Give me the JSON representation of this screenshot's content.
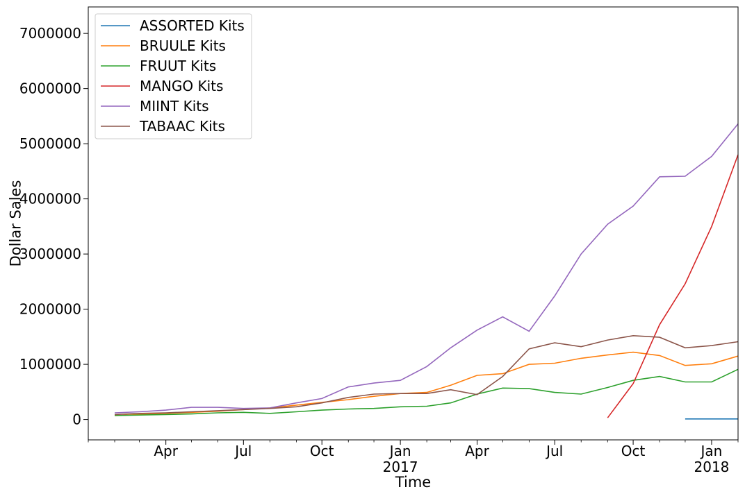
{
  "chart_data": {
    "type": "line",
    "xlabel": "Time",
    "ylabel": "Dollar Sales",
    "x": [
      "2016-02",
      "2016-03",
      "2016-04",
      "2016-05",
      "2016-06",
      "2016-07",
      "2016-08",
      "2016-09",
      "2016-10",
      "2016-11",
      "2016-12",
      "2017-01",
      "2017-02",
      "2017-03",
      "2017-04",
      "2017-05",
      "2017-06",
      "2017-07",
      "2017-08",
      "2017-09",
      "2017-10",
      "2017-11",
      "2017-12",
      "2018-01",
      "2018-02"
    ],
    "xlim": [
      "2016-01-01",
      "2018-02-01"
    ],
    "ylim": [
      -370000,
      7480000
    ],
    "x_ticks": [
      {
        "date": "2016-04",
        "label": "Apr",
        "label2": ""
      },
      {
        "date": "2016-07",
        "label": "Jul",
        "label2": ""
      },
      {
        "date": "2016-10",
        "label": "Oct",
        "label2": ""
      },
      {
        "date": "2017-01",
        "label": "Jan",
        "label2": "2017"
      },
      {
        "date": "2017-04",
        "label": "Apr",
        "label2": ""
      },
      {
        "date": "2017-07",
        "label": "Jul",
        "label2": ""
      },
      {
        "date": "2017-10",
        "label": "Oct",
        "label2": ""
      },
      {
        "date": "2018-01",
        "label": "Jan",
        "label2": "2018"
      }
    ],
    "y_ticks": [
      0,
      1000000,
      2000000,
      3000000,
      4000000,
      5000000,
      6000000,
      7000000
    ],
    "grid": false,
    "legend_position": "top-left",
    "series": [
      {
        "name": "ASSORTED Kits",
        "color": "#1f77b4",
        "values": [
          null,
          null,
          null,
          null,
          null,
          null,
          null,
          null,
          null,
          null,
          null,
          null,
          null,
          null,
          null,
          null,
          null,
          null,
          null,
          null,
          null,
          null,
          10000,
          10000,
          10000
        ]
      },
      {
        "name": "BRUULE Kits",
        "color": "#ff7f0e",
        "values": [
          70000,
          90000,
          110000,
          130000,
          150000,
          180000,
          210000,
          260000,
          310000,
          360000,
          420000,
          470000,
          490000,
          620000,
          800000,
          830000,
          1000000,
          1020000,
          1110000,
          1170000,
          1220000,
          1160000,
          980000,
          1010000,
          1150000
        ]
      },
      {
        "name": "FRUUT Kits",
        "color": "#2ca02c",
        "values": [
          70000,
          80000,
          90000,
          100000,
          120000,
          130000,
          110000,
          140000,
          170000,
          190000,
          200000,
          230000,
          240000,
          300000,
          460000,
          570000,
          560000,
          490000,
          460000,
          580000,
          710000,
          780000,
          680000,
          680000,
          910000
        ]
      },
      {
        "name": "MANGO Kits",
        "color": "#d62728",
        "values": [
          null,
          null,
          null,
          null,
          null,
          null,
          null,
          null,
          null,
          null,
          null,
          null,
          null,
          null,
          null,
          null,
          null,
          null,
          null,
          30000,
          650000,
          1720000,
          2460000,
          3500000,
          4800000
        ]
      },
      {
        "name": "MIINT Kits",
        "color": "#9467bd",
        "values": [
          120000,
          140000,
          170000,
          220000,
          220000,
          200000,
          210000,
          300000,
          380000,
          590000,
          660000,
          710000,
          960000,
          1300000,
          1620000,
          1860000,
          1600000,
          2240000,
          3000000,
          3540000,
          3870000,
          4400000,
          4410000,
          4770000,
          5360000
        ]
      },
      {
        "name": "TABAAC Kits",
        "color": "#8c564b",
        "values": [
          90000,
          110000,
          120000,
          140000,
          160000,
          180000,
          200000,
          230000,
          300000,
          400000,
          460000,
          470000,
          470000,
          540000,
          450000,
          780000,
          1280000,
          1390000,
          1320000,
          1440000,
          1520000,
          1490000,
          1300000,
          1340000,
          1410000
        ]
      }
    ]
  }
}
